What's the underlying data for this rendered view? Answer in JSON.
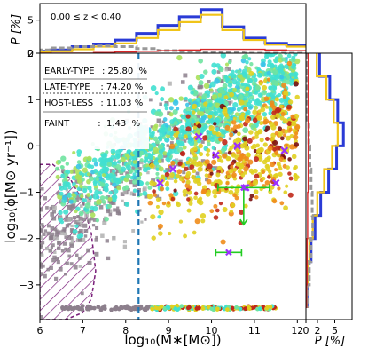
{
  "chart_data": [
    {
      "panel": "main",
      "type": "scatter",
      "xlabel": "log₁₀(M∗[M⊙])",
      "ylabel": "log₁₀(ϕ[M⊙ yr⁻¹])",
      "xlim": [
        6.0,
        12.2
      ],
      "ylim": [
        -3.75,
        2.0
      ],
      "xticks": [
        "6",
        "7",
        "8",
        "9",
        "10",
        "11",
        "12"
      ],
      "yticks": [
        "−3",
        "−2",
        "−1",
        "0",
        "1",
        "2"
      ],
      "grid": false,
      "legend_rows": [
        {
          "label": "EARLY-TYPE",
          "value": ": 25.80  %"
        },
        {
          "label": "LATE-TYPE",
          "value": "  : 74.20 %"
        },
        {
          "label": "HOST-LESS",
          "value": "  : 11.03 %"
        },
        {
          "label": "FAINT",
          "value": "       :  1.43  %"
        }
      ],
      "legend_placement": "top-left",
      "vertical_dashed_line_x": 8.3,
      "hatched_region": "low mass, x < 7.3",
      "late_type_band": {
        "x_range": [
          6.4,
          12.0
        ],
        "y_at_low_mass": -1.1,
        "y_at_high_mass": 1.7
      },
      "early_type_band": {
        "x_range": [
          8.5,
          12.0
        ],
        "y_at_low_mass": -1.2,
        "y_at_high_mass": 0.3
      },
      "hostless_band": {
        "x_range": [
          6.0,
          10.5
        ],
        "y_at_low_mass": -2.2,
        "y_at_high_mass": 1.0
      },
      "upper_limit_row_y": -3.5,
      "purple_x_points": [
        [
          9.7,
          0.2
        ],
        [
          9.1,
          -0.5
        ],
        [
          10.1,
          -0.2
        ],
        [
          10.6,
          0.0
        ],
        [
          11.7,
          -0.1
        ],
        [
          8.8,
          -0.8
        ],
        [
          11.5,
          -0.8
        ],
        [
          10.8,
          -0.9
        ]
      ],
      "error_points": [
        {
          "x": 10.75,
          "y": -0.9,
          "xerr": 0.6,
          "yerr_down": 0.8
        },
        {
          "x": 10.4,
          "y": -2.3,
          "xerr": 0.3
        }
      ],
      "colors": {
        "late_type": "#40e0d0",
        "early_type": "#e0d020",
        "hostless": "#8c7f8c",
        "faint": "#b0b0b0",
        "marker_x": "#9b30ff",
        "error_bar": "#22cc22",
        "dashed_line": "#1f77b4",
        "hatch": "#7a1f7a"
      }
    },
    {
      "panel": "top-histogram",
      "type": "line",
      "annotation": "0.00 ≤ z < 0.40",
      "ylabel": "P [%]",
      "yticks": [
        "0",
        "5"
      ],
      "ylim": [
        0,
        7.5
      ],
      "x": [
        6.0,
        6.5,
        7.0,
        7.5,
        8.0,
        8.5,
        9.0,
        9.5,
        10.0,
        10.5,
        11.0,
        11.5,
        12.0
      ],
      "series": [
        {
          "color": "#2a3bd6",
          "values": [
            0.3,
            0.5,
            1.0,
            1.4,
            2.0,
            3.0,
            4.2,
            5.5,
            6.6,
            4.0,
            2.3,
            1.5,
            1.2
          ]
        },
        {
          "color": "#f0c419",
          "values": [
            0.2,
            0.3,
            0.6,
            1.0,
            1.5,
            2.3,
            3.5,
            4.7,
            5.8,
            3.5,
            2.0,
            1.3,
            1.0
          ]
        },
        {
          "color": "#999999",
          "values": [
            0.5,
            0.8,
            1.0,
            1.1,
            1.0,
            0.7,
            0.4,
            0.3,
            0.2,
            0.1,
            0.0,
            0.0,
            0.0
          ]
        },
        {
          "color": "#d62728",
          "values": [
            0.0,
            0.0,
            0.0,
            0.1,
            0.2,
            0.3,
            0.4,
            0.5,
            0.6,
            0.6,
            0.6,
            0.5,
            0.4
          ]
        }
      ]
    },
    {
      "panel": "right-histogram",
      "type": "line",
      "xlabel": "P [%]",
      "xticks": [
        "0",
        "2",
        "5"
      ],
      "xlim": [
        0,
        8
      ],
      "y": [
        1.75,
        1.25,
        0.75,
        0.25,
        -0.25,
        -0.75,
        -1.25,
        -1.75,
        -2.25,
        -2.75,
        -3.25
      ],
      "series": [
        {
          "color": "#2a3bd6",
          "values": [
            2.4,
            4.2,
            5.6,
            6.6,
            5.4,
            4.0,
            2.6,
            1.6,
            0.9,
            0.4,
            0.2
          ]
        },
        {
          "color": "#f0c419",
          "values": [
            1.9,
            3.6,
            4.9,
            5.6,
            4.6,
            3.2,
            2.0,
            1.2,
            0.6,
            0.3,
            0.1
          ]
        },
        {
          "color": "#999999",
          "values": [
            0.1,
            0.2,
            0.3,
            0.5,
            0.7,
            0.9,
            1.1,
            1.2,
            0.9,
            0.6,
            0.4
          ]
        },
        {
          "color": "#d62728",
          "values": [
            0.4,
            0.4,
            0.4,
            0.4,
            0.4,
            0.4,
            0.3,
            0.3,
            0.2,
            0.2,
            0.1
          ]
        }
      ]
    }
  ]
}
